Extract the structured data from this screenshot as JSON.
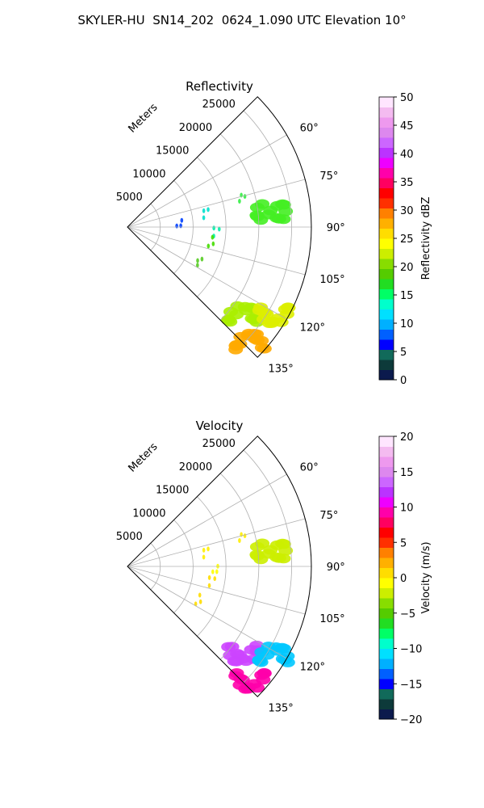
{
  "figure": {
    "title": "SKYLER-HU  SN14_202  0624_1.090 UTC Elevation 10°"
  },
  "chart_data": [
    {
      "type": "polar-sector",
      "title": "Reflectivity",
      "radial_label": "Meters",
      "radial_ticks": [
        "5000",
        "10000",
        "15000",
        "20000",
        "25000"
      ],
      "radial_values": [
        5000,
        10000,
        15000,
        20000,
        25000
      ],
      "rlim": [
        0,
        28000
      ],
      "angular_ticks": [
        "60°",
        "75°",
        "90°",
        "105°",
        "120°",
        "135°"
      ],
      "angular_values": [
        60,
        75,
        90,
        105,
        120,
        135
      ],
      "theta_range": [
        45,
        135
      ],
      "grid": true,
      "colorbar": {
        "label": "Reflectivity dBZ",
        "range": [
          0,
          50
        ],
        "tick_values": [
          0,
          5,
          10,
          15,
          20,
          25,
          30,
          35,
          40,
          45,
          50
        ],
        "tick_labels": [
          "0",
          "5",
          "10",
          "15",
          "20",
          "25",
          "30",
          "35",
          "40",
          "45",
          "50"
        ],
        "colors": [
          "#0b1a4d",
          "#0d3a3a",
          "#116a5a",
          "#0000ff",
          "#0060ff",
          "#00b0ff",
          "#00e0ff",
          "#00ffcc",
          "#00ff66",
          "#22dd22",
          "#55cc00",
          "#88dd00",
          "#ccee00",
          "#ffff00",
          "#ffdd00",
          "#ffb000",
          "#ff8000",
          "#ff3000",
          "#ff0000",
          "#ff0060",
          "#ff00aa",
          "#ee00ff",
          "#bb33ff",
          "#cc66ff",
          "#dd88ee",
          "#ee99ee",
          "#f4bbf0",
          "#ffe6ff"
        ]
      },
      "echo_features": [
        {
          "theta": 75,
          "r": 18000,
          "value": 15,
          "color": "#33ee44"
        },
        {
          "theta": 84,
          "r": 22000,
          "value": 17,
          "color": "#44ee22"
        },
        {
          "theta": 80,
          "r": 12000,
          "value": 12,
          "color": "#00e0cc"
        },
        {
          "theta": 88,
          "r": 8000,
          "value": 4,
          "color": "#0040ff"
        },
        {
          "theta": 93,
          "r": 13500,
          "value": 13,
          "color": "#00f0aa"
        },
        {
          "theta": 100,
          "r": 13000,
          "value": 18,
          "color": "#44dd00"
        },
        {
          "theta": 115,
          "r": 12000,
          "value": 18,
          "color": "#55cc22"
        },
        {
          "theta": 127,
          "r": 22000,
          "value": 22,
          "color": "#aaee00"
        },
        {
          "theta": 121,
          "r": 26000,
          "value": 24,
          "color": "#ddee00"
        },
        {
          "theta": 133,
          "r": 25500,
          "value": 33,
          "color": "#ffaa00"
        }
      ]
    },
    {
      "type": "polar-sector",
      "title": "Velocity",
      "radial_label": "Meters",
      "radial_ticks": [
        "5000",
        "10000",
        "15000",
        "20000",
        "25000"
      ],
      "radial_values": [
        5000,
        10000,
        15000,
        20000,
        25000
      ],
      "rlim": [
        0,
        28000
      ],
      "angular_ticks": [
        "60°",
        "75°",
        "90°",
        "105°",
        "120°",
        "135°"
      ],
      "angular_values": [
        60,
        75,
        90,
        105,
        120,
        135
      ],
      "theta_range": [
        45,
        135
      ],
      "grid": true,
      "colorbar": {
        "label": "Velocity (m/s)",
        "range": [
          -20,
          20
        ],
        "tick_values": [
          -20,
          -15,
          -10,
          -5,
          0,
          5,
          10,
          15,
          20
        ],
        "tick_labels": [
          "−20",
          "−15",
          "−10",
          "−5",
          "0",
          "5",
          "10",
          "15",
          "20"
        ],
        "colors": [
          "#0b1a4d",
          "#0d3a3a",
          "#116a5a",
          "#0000ff",
          "#0060ff",
          "#00b0ff",
          "#00e0ff",
          "#00ffcc",
          "#00ff66",
          "#22dd22",
          "#55cc00",
          "#88dd00",
          "#ccee00",
          "#ffff00",
          "#ffdd00",
          "#ffb000",
          "#ff8000",
          "#ff3000",
          "#ff0000",
          "#ff0060",
          "#ff00aa",
          "#ee00ff",
          "#bb33ff",
          "#cc66ff",
          "#dd88ee",
          "#ee99ee",
          "#f4bbf0",
          "#ffe6ff"
        ]
      },
      "echo_features": [
        {
          "theta": 75,
          "r": 18000,
          "value": 1,
          "color": "#ffee00"
        },
        {
          "theta": 84,
          "r": 22000,
          "value": -3,
          "color": "#ccee00"
        },
        {
          "theta": 80,
          "r": 12000,
          "value": 1,
          "color": "#ffee00"
        },
        {
          "theta": 93,
          "r": 13500,
          "value": 0,
          "color": "#ffff00"
        },
        {
          "theta": 100,
          "r": 13000,
          "value": 1,
          "color": "#ffdd00"
        },
        {
          "theta": 115,
          "r": 12000,
          "value": 1,
          "color": "#ffdd00"
        },
        {
          "theta": 127,
          "r": 22000,
          "value": 14,
          "color": "#cc44ff"
        },
        {
          "theta": 121,
          "r": 26000,
          "value": -12,
          "color": "#00c8ff"
        },
        {
          "theta": 133,
          "r": 25500,
          "value": 11,
          "color": "#ff00aa"
        }
      ]
    }
  ]
}
